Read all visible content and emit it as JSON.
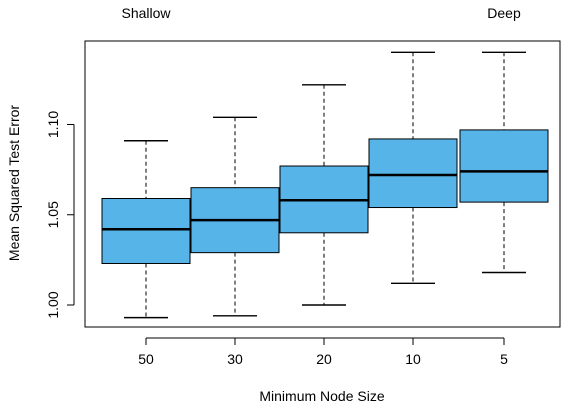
{
  "chart_data": {
    "type": "box",
    "annotations": [
      "Shallow",
      "Deep"
    ],
    "xlabel": "Minimum Node Size",
    "ylabel": "Mean Squared Test Error",
    "categories": [
      "50",
      "30",
      "20",
      "10",
      "5"
    ],
    "ylim": [
      0.988,
      1.145
    ],
    "yticks": [
      "1.00",
      "1.05",
      "1.10"
    ],
    "ytick_values": [
      1.0,
      1.05,
      1.1
    ],
    "box_color": "#56b4e9",
    "boxes": [
      {
        "label": "50",
        "whisker_low": 0.993,
        "q1": 1.023,
        "median": 1.042,
        "q3": 1.059,
        "whisker_high": 1.091
      },
      {
        "label": "30",
        "whisker_low": 0.994,
        "q1": 1.029,
        "median": 1.047,
        "q3": 1.065,
        "whisker_high": 1.104
      },
      {
        "label": "20",
        "whisker_low": 1.0,
        "q1": 1.04,
        "median": 1.058,
        "q3": 1.077,
        "whisker_high": 1.122
      },
      {
        "label": "10",
        "whisker_low": 1.012,
        "q1": 1.054,
        "median": 1.072,
        "q3": 1.092,
        "whisker_high": 1.14
      },
      {
        "label": "5",
        "whisker_low": 1.018,
        "q1": 1.057,
        "median": 1.074,
        "q3": 1.097,
        "whisker_high": 1.14
      }
    ],
    "grid": false,
    "legend": "none"
  }
}
